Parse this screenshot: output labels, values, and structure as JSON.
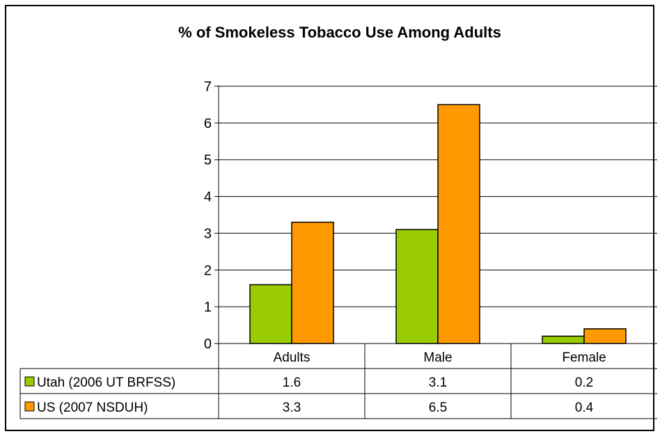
{
  "chart_data": {
    "type": "bar",
    "title": "% of Smokeless Tobacco Use Among Adults",
    "xlabel": "",
    "ylabel": "",
    "categories": [
      "Adults",
      "Male",
      "Female"
    ],
    "ylim": [
      0,
      7
    ],
    "yticks": [
      "0",
      "1",
      "2",
      "3",
      "4",
      "5",
      "6",
      "7"
    ],
    "grid": true,
    "legend": "data-table",
    "series": [
      {
        "name": "Utah (2006 UT BRFSS)",
        "values": [
          1.6,
          3.1,
          0.2
        ],
        "labels": [
          "1.6",
          "3.1",
          "0.2"
        ],
        "color": "#99CC00"
      },
      {
        "name": "US (2007 NSDUH)",
        "values": [
          3.3,
          6.5,
          0.4
        ],
        "labels": [
          "3.3",
          "6.5",
          "0.4"
        ],
        "color": "#FF9900"
      }
    ]
  }
}
